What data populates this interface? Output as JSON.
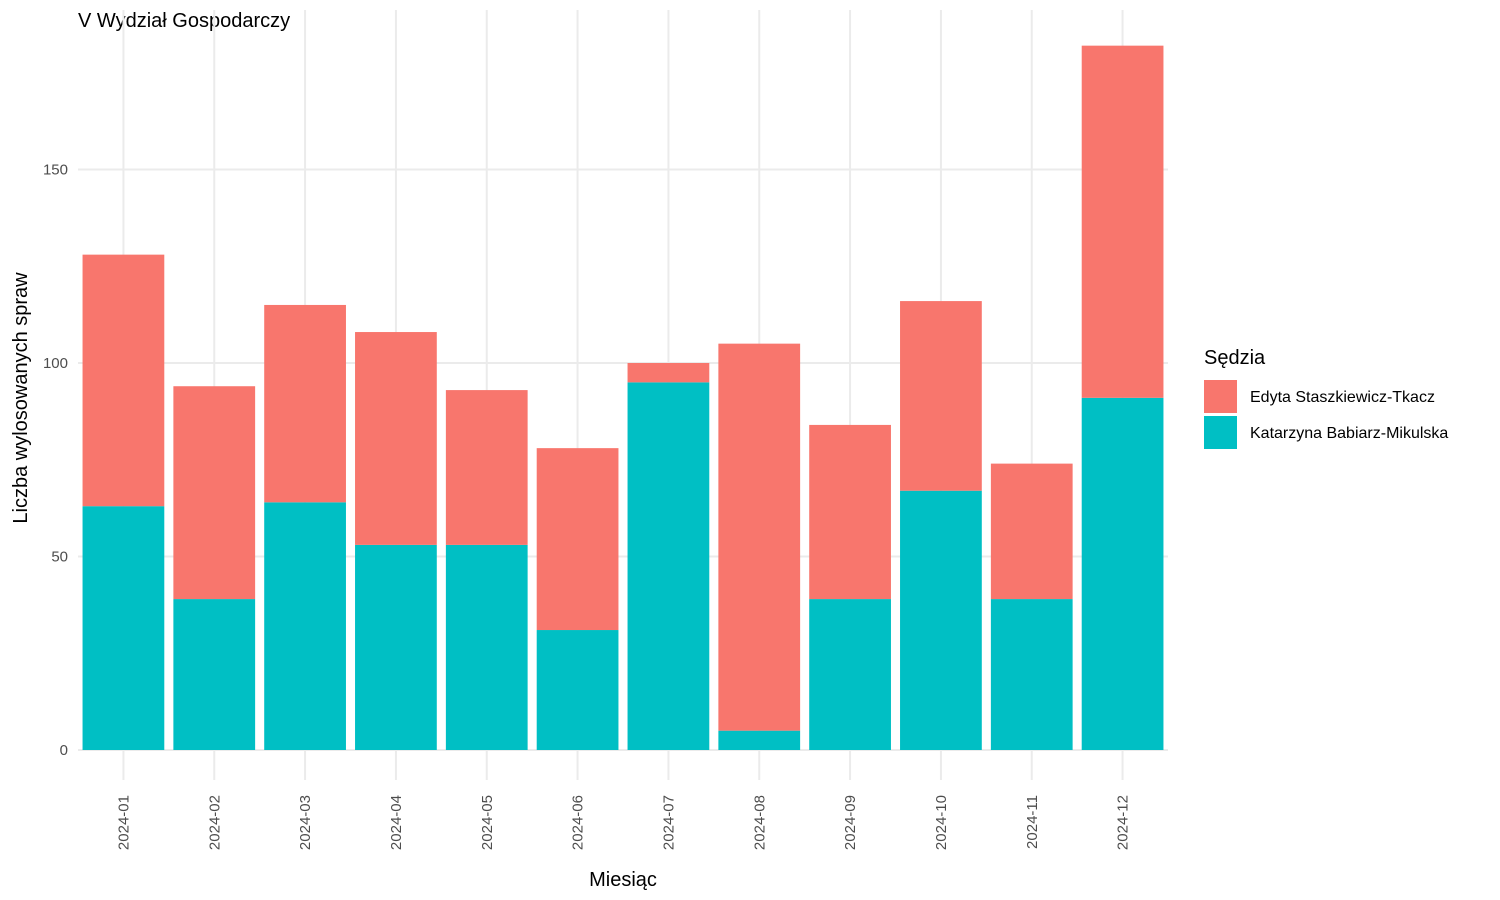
{
  "chart_data": {
    "type": "bar",
    "stacked": true,
    "title": "V Wydział Gospodarczy",
    "xlabel": "Miesiąc",
    "ylabel": "Liczba wylosowanych spraw",
    "ylim": [
      0,
      190
    ],
    "yticks": [
      0,
      50,
      100,
      150
    ],
    "grid": true,
    "legend_title": "Sędzia",
    "legend_position": "right",
    "categories": [
      "2024-01",
      "2024-02",
      "2024-03",
      "2024-04",
      "2024-05",
      "2024-06",
      "2024-07",
      "2024-08",
      "2024-09",
      "2024-10",
      "2024-11",
      "2024-12"
    ],
    "series": [
      {
        "name": "Katarzyna Babiarz-Mikulska",
        "color": "#00BFC4",
        "values": [
          63,
          39,
          64,
          53,
          53,
          31,
          95,
          5,
          39,
          67,
          39,
          91
        ]
      },
      {
        "name": "Edyta Staszkiewicz-Tkacz",
        "color": "#F8766D",
        "values": [
          65,
          55,
          51,
          55,
          40,
          47,
          5,
          100,
          45,
          49,
          35,
          91
        ]
      }
    ],
    "legend_order": [
      "Edyta Staszkiewicz-Tkacz",
      "Katarzyna Babiarz-Mikulska"
    ]
  }
}
